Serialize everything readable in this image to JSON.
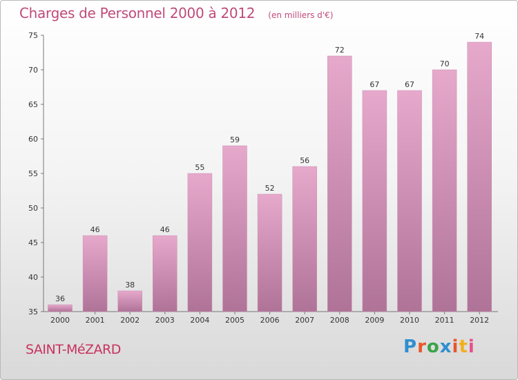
{
  "header": {
    "title": "Charges de Personnel 2000 à 2012",
    "subtitle": "(en milliers d'€)"
  },
  "footer": {
    "commune": "SAINT-MéZARD",
    "logo": {
      "text": "Proxiti",
      "colors": [
        "#2f8fd0",
        "#e8572a",
        "#3aa34a",
        "#2f8fd0",
        "#e8572a",
        "#f2b01e",
        "#e94f8a"
      ]
    }
  },
  "colors": {
    "bar_top": "#e6a9cc",
    "bar_bottom": "#b07398",
    "axis": "#777777",
    "accent_text": "#c04a7a"
  },
  "chart_data": {
    "type": "bar",
    "title": "Charges de Personnel 2000 à 2012",
    "subtitle": "(en milliers d'€)",
    "categories": [
      "2000",
      "2001",
      "2002",
      "2003",
      "2004",
      "2005",
      "2006",
      "2007",
      "2008",
      "2009",
      "2010",
      "2011",
      "2012"
    ],
    "values": [
      36,
      46,
      38,
      46,
      55,
      59,
      52,
      56,
      72,
      67,
      67,
      70,
      74
    ],
    "ylim": [
      35,
      75
    ],
    "yticks": [
      35,
      40,
      45,
      50,
      55,
      60,
      65,
      70,
      75
    ],
    "grid": false,
    "data_labels": true
  }
}
